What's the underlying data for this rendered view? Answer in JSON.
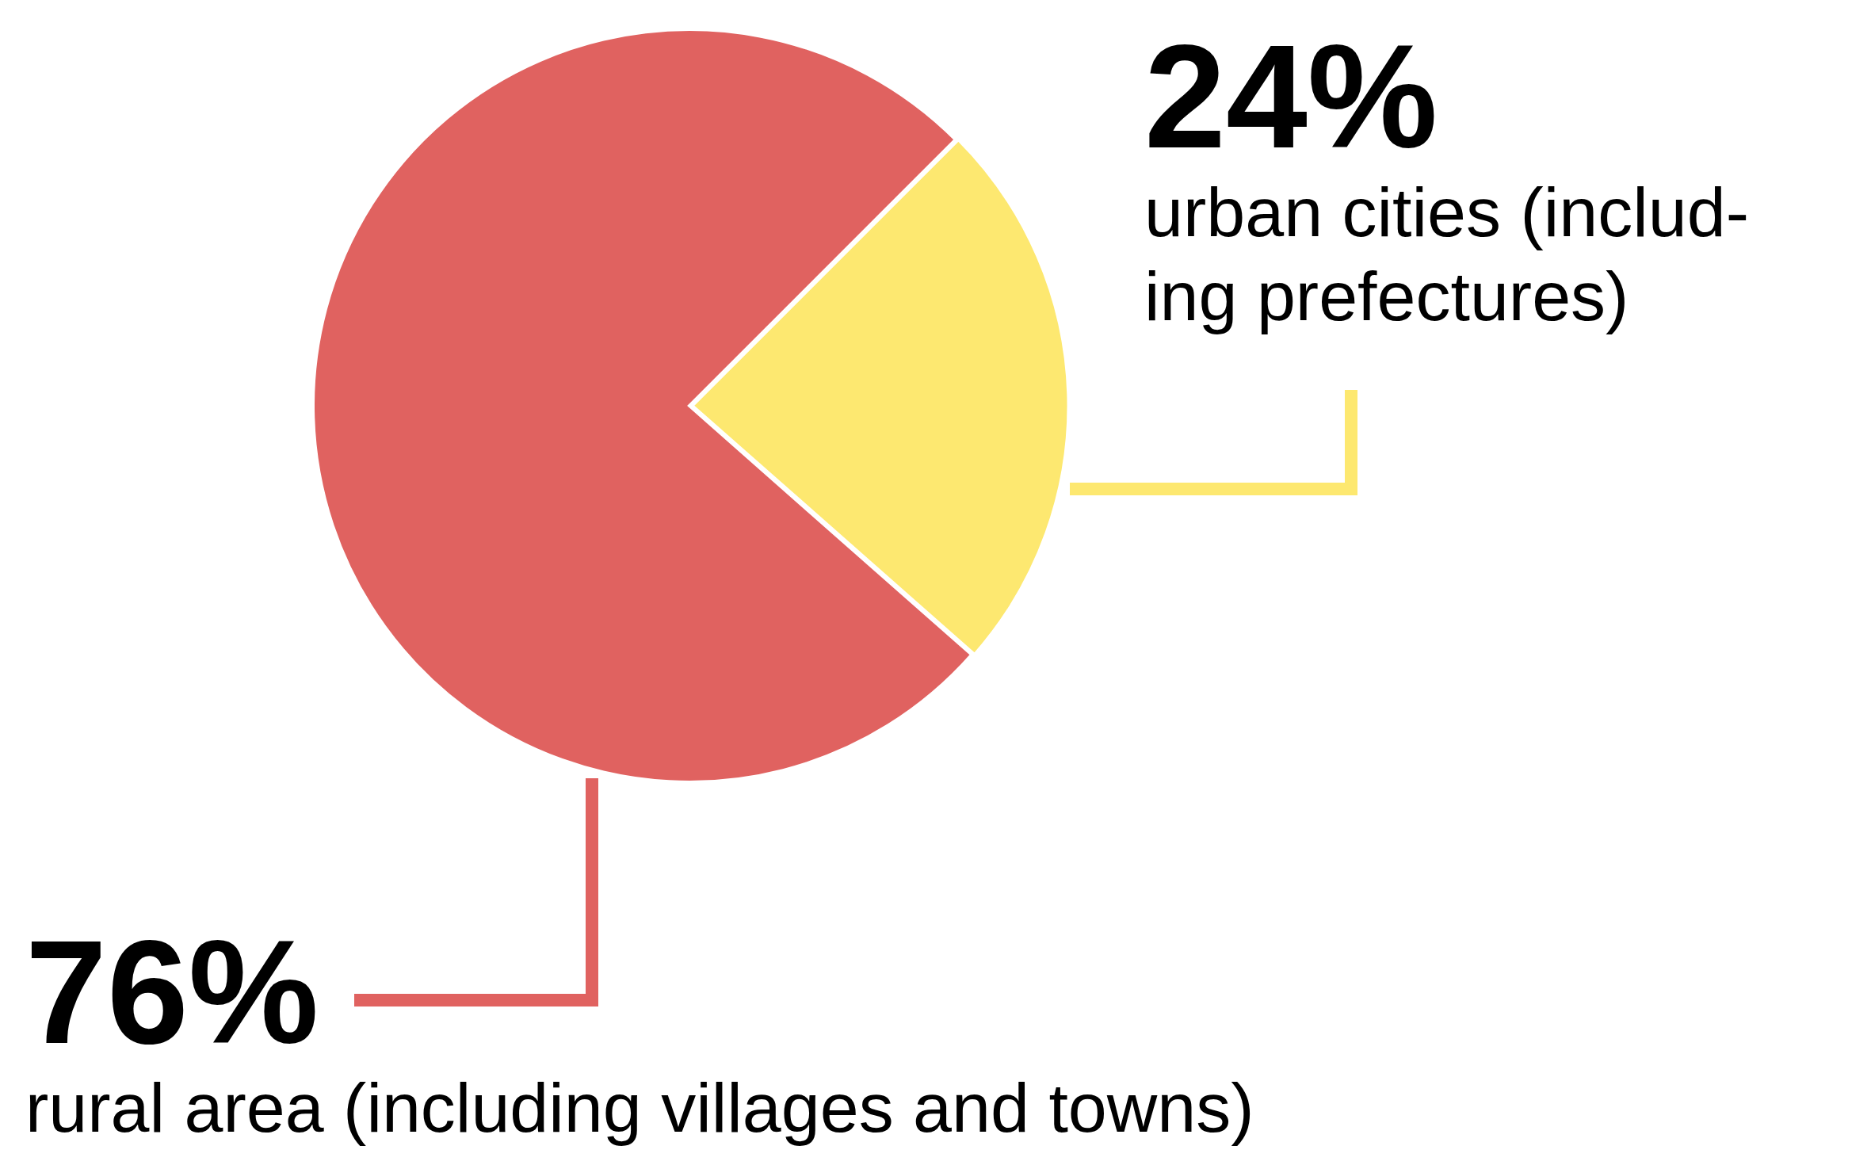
{
  "chart_data": {
    "type": "pie",
    "categories": [
      "urban cities (includ-\ning prefectures)",
      "rural area (including villages and towns)"
    ],
    "values": [
      24,
      76
    ],
    "value_labels": [
      "24%",
      "76%"
    ],
    "colors": [
      "#fde870",
      "#e06260"
    ],
    "legend": false
  }
}
